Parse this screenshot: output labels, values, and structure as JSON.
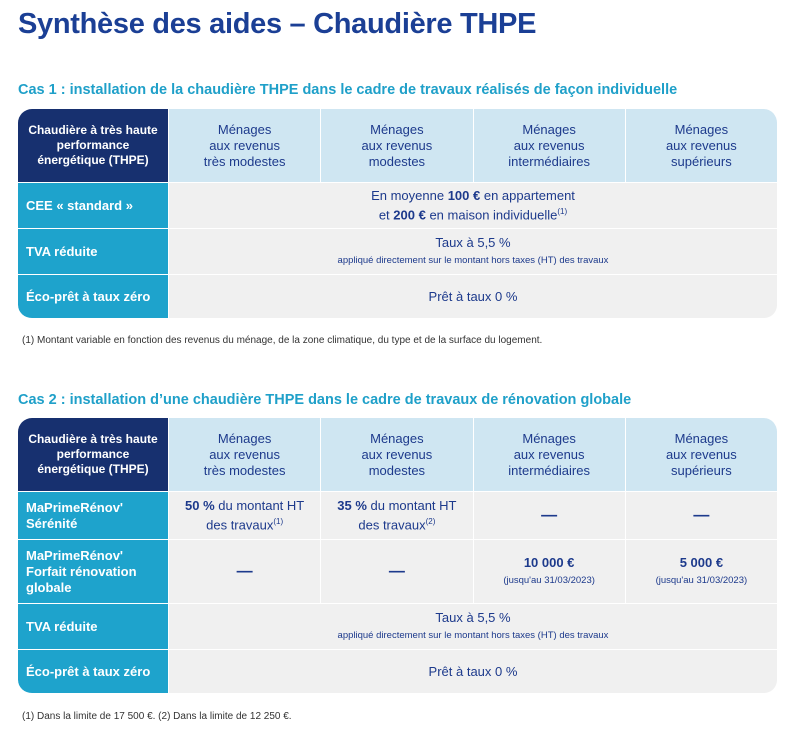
{
  "title": "Synthèse des aides – Chaudière THPE",
  "headers": {
    "corner": "Chaudière à très haute performance énergétique (THPE)",
    "col1": [
      "Ménages",
      "aux revenus",
      "très modestes"
    ],
    "col2": [
      "Ménages",
      "aux revenus",
      "modestes"
    ],
    "col3": [
      "Ménages",
      "aux revenus",
      "intermédiaires"
    ],
    "col4": [
      "Ménages",
      "aux revenus",
      "supérieurs"
    ]
  },
  "case1": {
    "title": "Cas 1 : installation de la chaudière THPE dans le cadre de travaux réalisés de façon individuelle",
    "rows": {
      "cee_label": "CEE « standard »",
      "cee_line1_pre": "En moyenne ",
      "cee_line1_bold": "100 €",
      "cee_line1_post": " en appartement",
      "cee_line2_pre": "et ",
      "cee_line2_bold": "200 €",
      "cee_line2_post": " en maison individuelle",
      "cee_note": "(1)",
      "tva_label": "TVA réduite",
      "tva_value": "Taux à 5,5 %",
      "tva_sub": "appliqué directement sur le montant hors taxes (HT) des travaux",
      "eco_label": "Éco-prêt à taux zéro",
      "eco_value": "Prêt à taux 0 %"
    },
    "footnote": "(1) Montant variable en fonction des revenus du ménage, de la zone climatique, du type et de la surface du logement."
  },
  "case2": {
    "title": "Cas 2 : installation d’une chaudière THPE dans le cadre de travaux de rénovation globale",
    "rows": {
      "mpr_serenite_label": "MaPrimeRénov' Sérénité",
      "mpr_c1_bold": "50 %",
      "mpr_c1_text": " du montant HT",
      "mpr_c1_text2": "des travaux",
      "mpr_c1_note": "(1)",
      "mpr_c2_bold": "35 %",
      "mpr_c2_text": " du montant HT",
      "mpr_c2_text2": "des travaux",
      "mpr_c2_note": "(2)",
      "dash": "—",
      "mpr_forfait_label": "MaPrimeRénov' Forfait rénovation globale",
      "forfait_c3_value": "10 000 €",
      "forfait_c3_sub": "(jusqu'au 31/03/2023)",
      "forfait_c4_value": "5 000 €",
      "forfait_c4_sub": "(jusqu'au 31/03/2023)",
      "tva_label": "TVA réduite",
      "tva_value": "Taux à 5,5 %",
      "tva_sub": "appliqué directement sur le montant hors taxes (HT) des travaux",
      "eco_label": "Éco-prêt à taux zéro",
      "eco_value": "Prêt à taux 0 %"
    },
    "footnote": "(1) Dans la limite de 17 500 €. (2) Dans la limite de 12 250 €."
  }
}
